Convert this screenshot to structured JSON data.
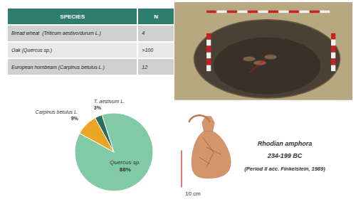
{
  "chart_data": {
    "type": "pie",
    "categories": [
      "Quercus sp.",
      "Carpinus betulus L.",
      "T. aestivum L."
    ],
    "values": [
      88,
      9,
      3
    ],
    "value_labels": [
      "88%",
      "9%",
      "3%"
    ],
    "colors": [
      "#82c9a5",
      "#e8a623",
      "#2d6b5a"
    ],
    "data_labels": true,
    "annotations": [
      "SPECIES",
      "N",
      "Bread wheat  (Triticum aestivo/durum L.)",
      "4",
      "Oak (Quercus sp.)",
      ">100",
      "European hornbeam (Carpinus betulus L.)",
      "12",
      "10 cm",
      "Rhodian amphora",
      "234-199 BC",
      "(Period II acc. Finkelstein, 1989)"
    ]
  }
}
